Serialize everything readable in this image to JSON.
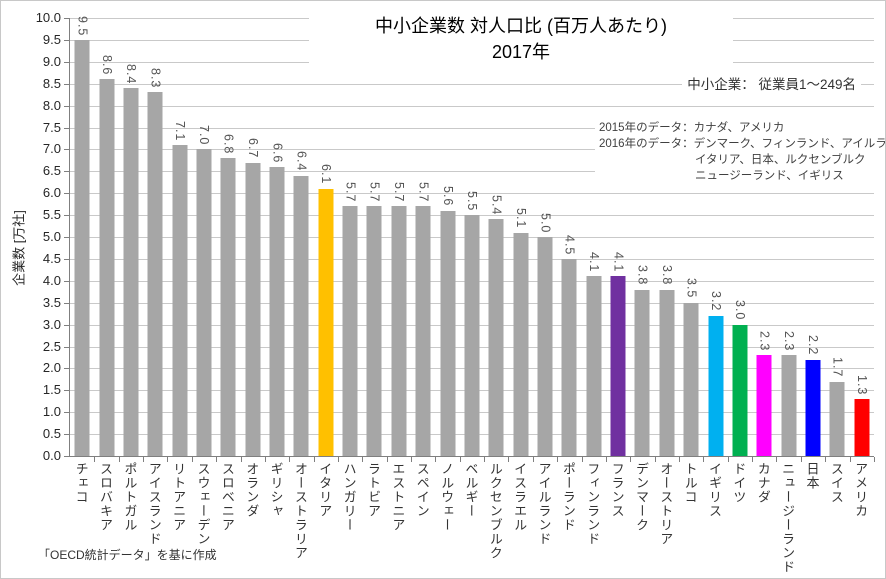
{
  "title": {
    "line1": "中小企業数 対人口比 (百万人あたり)",
    "line2": "2017年"
  },
  "annotations": {
    "sme_definition": "中小企業： 従業員1～249名",
    "data_notes": [
      "2015年のデータ：カナダ、アメリカ",
      "2016年のデータ：デンマーク、フィンランド、アイルランド",
      "イタリア、日本、ルクセンブルク",
      "ニュージーランド、イギリス"
    ]
  },
  "y_axis": {
    "label": "企業数 [万社]",
    "min": 0.0,
    "max": 10.0,
    "step": 0.5
  },
  "source": "「OECD統計データ」を基に作成",
  "colors": {
    "default_bar": "#A6A6A6",
    "gridline": "#C9C9C9",
    "axis": "#7F7F7F",
    "highlight_italy": "#FFC000",
    "highlight_france": "#7030A0",
    "highlight_uk": "#00B0F0",
    "highlight_germany": "#00B050",
    "highlight_canada": "#FF00FF",
    "highlight_japan": "#0000FF",
    "highlight_usa": "#FF0000"
  },
  "chart_data": {
    "type": "bar",
    "title": "中小企業数 対人口比 (百万人あたり) 2017年",
    "xlabel": "",
    "ylabel": "企業数 [万社]",
    "ylim": [
      0,
      10
    ],
    "ytick_step": 0.5,
    "grid": true,
    "legend": false,
    "categories": [
      "チェコ",
      "スロバキア",
      "ポルトガル",
      "アイスランド",
      "リトアニア",
      "スウェーデン",
      "スロベニア",
      "オランダ",
      "ギリシャ",
      "オーストラリア",
      "イタリア",
      "ハンガリー",
      "ラトビア",
      "エストニア",
      "スペイン",
      "ノルウェー",
      "ベルギー",
      "ルクセンブルク",
      "イスラエル",
      "アイルランド",
      "ポーランド",
      "フィンランド",
      "フランス",
      "デンマーク",
      "オーストリア",
      "トルコ",
      "イギリス",
      "ドイツ",
      "カナダ",
      "ニュージーランド",
      "日本",
      "スイス",
      "アメリカ"
    ],
    "values": [
      9.5,
      8.6,
      8.4,
      8.3,
      7.1,
      7.0,
      6.8,
      6.7,
      6.6,
      6.4,
      6.1,
      5.7,
      5.7,
      5.7,
      5.7,
      5.6,
      5.5,
      5.4,
      5.1,
      5.0,
      4.5,
      4.1,
      4.1,
      3.8,
      3.8,
      3.5,
      3.2,
      3.0,
      2.3,
      2.3,
      2.2,
      1.7,
      1.3
    ],
    "bar_colors": [
      "#A6A6A6",
      "#A6A6A6",
      "#A6A6A6",
      "#A6A6A6",
      "#A6A6A6",
      "#A6A6A6",
      "#A6A6A6",
      "#A6A6A6",
      "#A6A6A6",
      "#A6A6A6",
      "#FFC000",
      "#A6A6A6",
      "#A6A6A6",
      "#A6A6A6",
      "#A6A6A6",
      "#A6A6A6",
      "#A6A6A6",
      "#A6A6A6",
      "#A6A6A6",
      "#A6A6A6",
      "#A6A6A6",
      "#A6A6A6",
      "#7030A0",
      "#A6A6A6",
      "#A6A6A6",
      "#A6A6A6",
      "#00B0F0",
      "#00B050",
      "#FF00FF",
      "#A6A6A6",
      "#0000FF",
      "#A6A6A6",
      "#FF0000"
    ]
  }
}
